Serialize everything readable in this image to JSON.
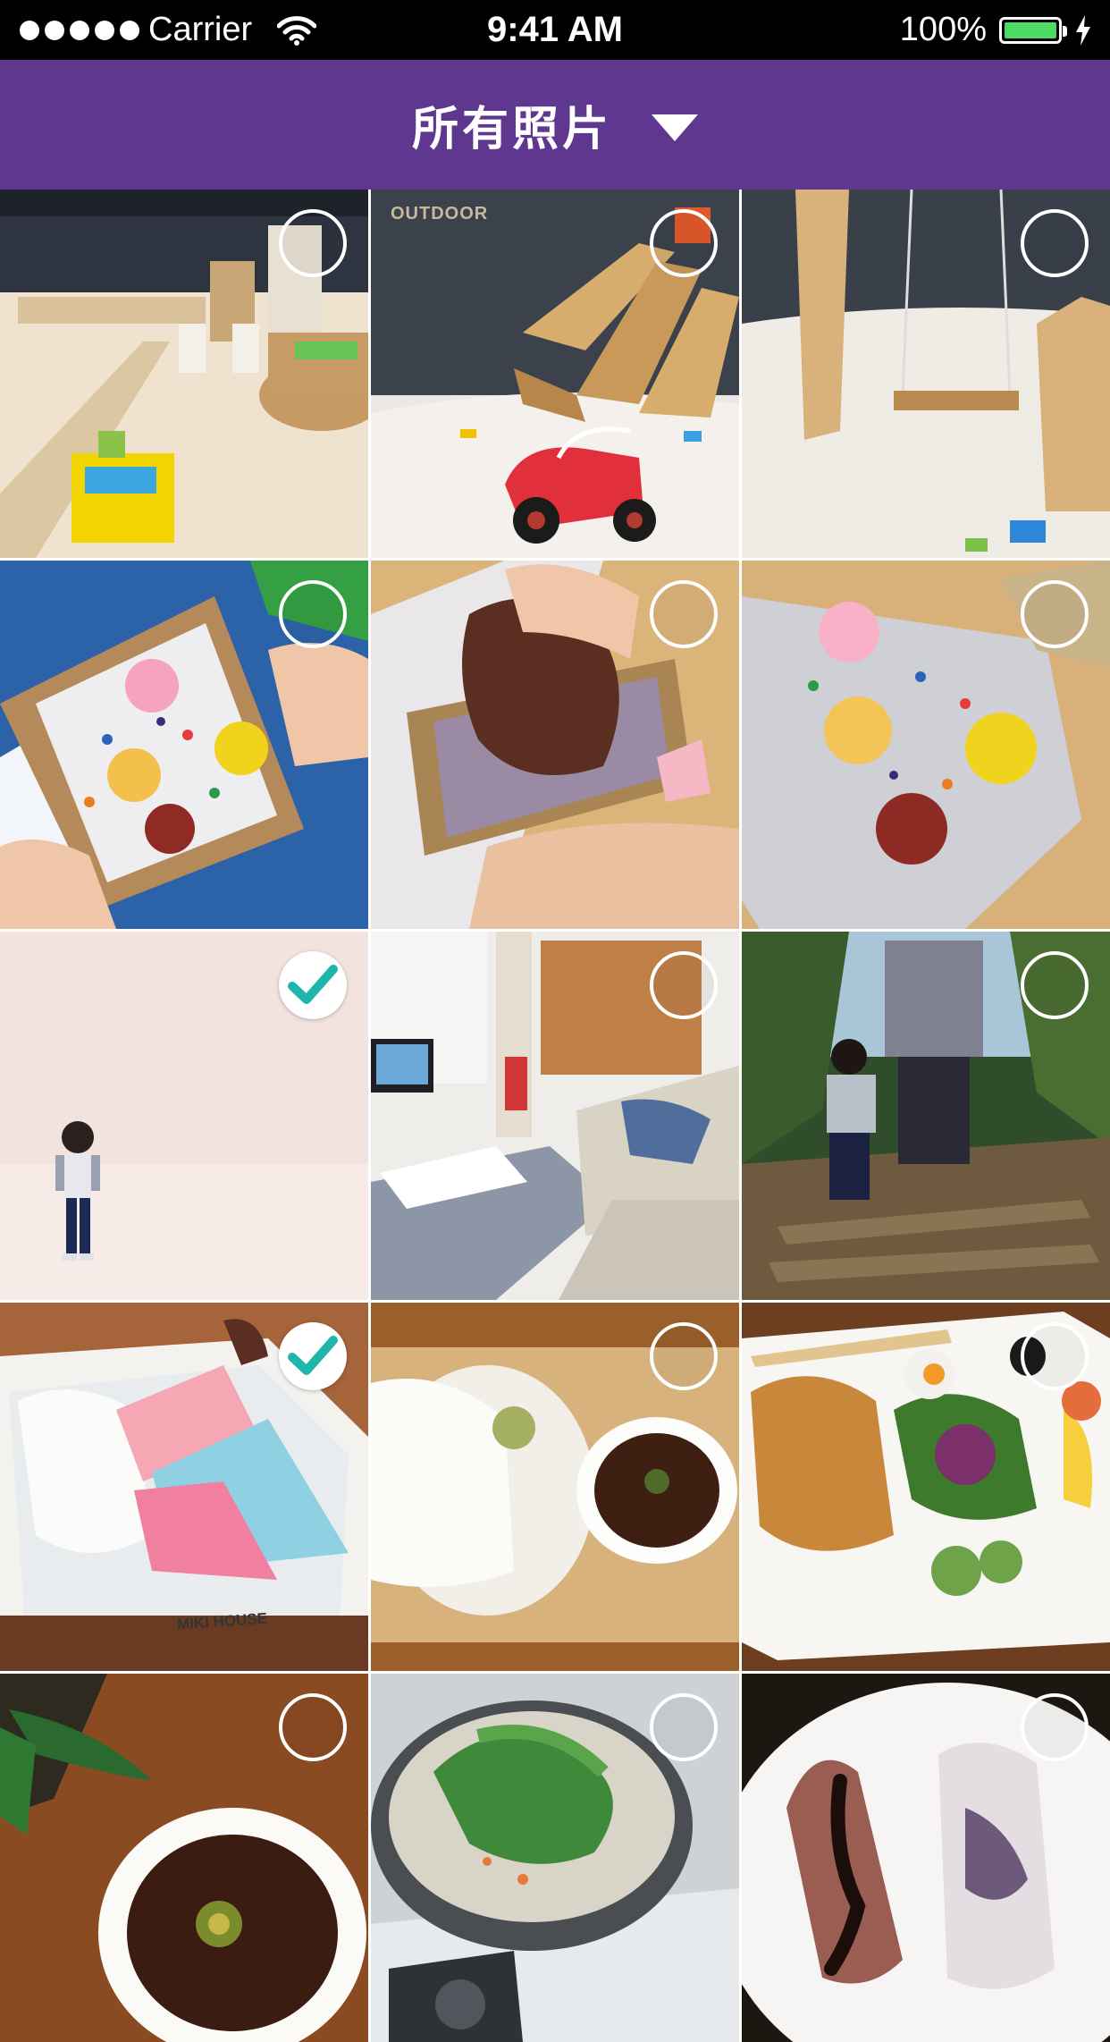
{
  "status_bar": {
    "carrier": "Carrier",
    "time": "9:41 AM",
    "battery": "100%",
    "icons": [
      "signal-dots-icon",
      "wifi-icon",
      "battery-icon",
      "charging-bolt-icon"
    ]
  },
  "nav": {
    "title": "所有照片",
    "dropdown_icon": "caret-down-icon",
    "color": "#5f378f"
  },
  "accent": {
    "check_color": "#1fb5ad"
  },
  "photos": [
    {
      "name": "photo-playroom",
      "selected": false,
      "text": []
    },
    {
      "name": "photo-sand-slide",
      "selected": false,
      "text": [
        "OUTDOOR"
      ]
    },
    {
      "name": "photo-swing",
      "selected": false,
      "text": []
    },
    {
      "name": "photo-frame-craft",
      "selected": false,
      "text": []
    },
    {
      "name": "photo-paper-making",
      "selected": false,
      "text": []
    },
    {
      "name": "photo-handmade-paper",
      "selected": false,
      "text": []
    },
    {
      "name": "photo-child-studio",
      "selected": true,
      "text": []
    },
    {
      "name": "photo-living-room",
      "selected": false,
      "text": []
    },
    {
      "name": "photo-hiking",
      "selected": false,
      "text": []
    },
    {
      "name": "photo-gift-box",
      "selected": true,
      "text": [
        "MIKI HOUSE"
      ]
    },
    {
      "name": "photo-tea-set",
      "selected": false,
      "text": []
    },
    {
      "name": "photo-breakfast-plate",
      "selected": false,
      "text": []
    },
    {
      "name": "photo-tea-cup",
      "selected": false,
      "text": []
    },
    {
      "name": "photo-noodle-pot",
      "selected": false,
      "text": []
    },
    {
      "name": "photo-dessert-plate",
      "selected": false,
      "text": []
    }
  ]
}
